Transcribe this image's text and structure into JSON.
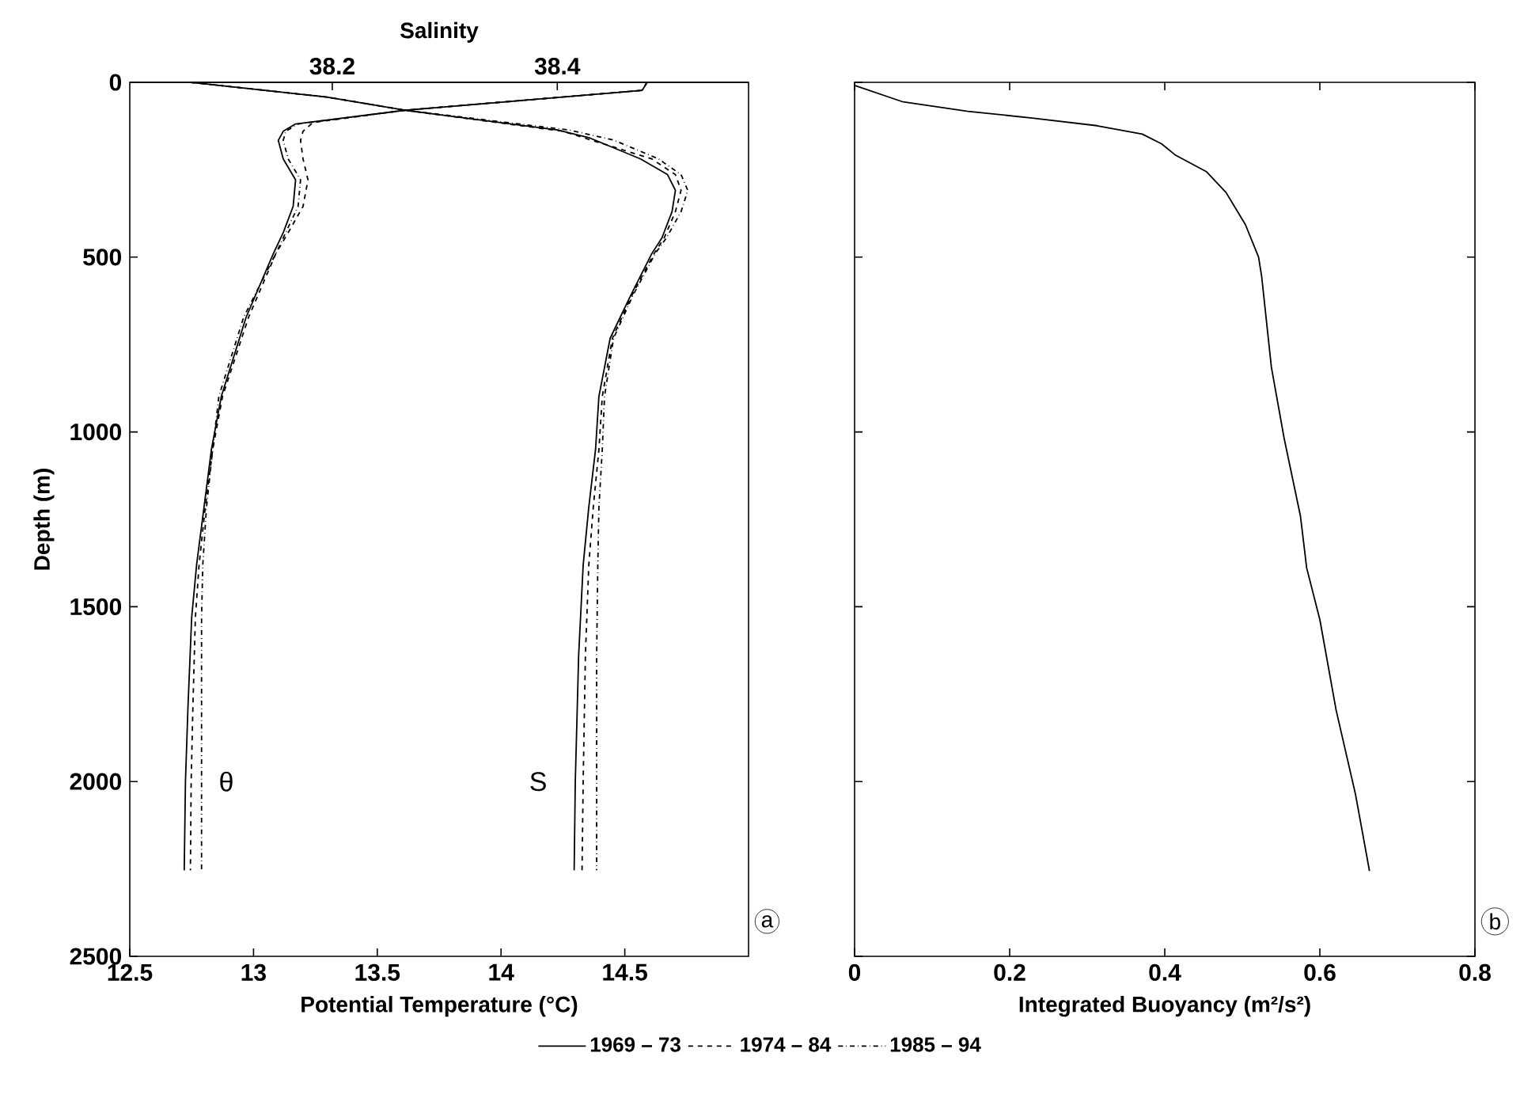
{
  "chart_data": [
    {
      "type": "line",
      "xlabel": "Potential Temperature (°C)",
      "ylabel": "Depth (m)",
      "x2label": "Salinity",
      "xlim": [
        12.5,
        15
      ],
      "xticks": [
        12.5,
        13,
        13.5,
        14,
        14.5
      ],
      "x2lim": [
        38.02,
        38.57
      ],
      "x2ticks": [
        38.2,
        38.4
      ],
      "ylim": [
        2500,
        0
      ],
      "yticks": [
        0,
        500,
        1000,
        1500,
        2000,
        2500
      ],
      "legend": "bottom",
      "series": [
        {
          "name": "1969 – 73",
          "color": "#000000",
          "line_style": "solid",
          "x": [
            14.59,
            14.57,
            13.61,
            13.17,
            13.12,
            13.1,
            13.12,
            13.17,
            13.16,
            13.12,
            13.08,
            12.97,
            12.87,
            12.83,
            12.8,
            12.77,
            12.75,
            12.735,
            12.725,
            12.72
          ],
          "values": [
            0,
            23,
            80,
            119,
            140,
            166,
            219,
            279,
            355,
            430,
            490,
            672,
            898,
            1050,
            1215,
            1380,
            1532,
            1789,
            2000,
            2254
          ]
        },
        {
          "name": "1974 – 84",
          "color": "#000000",
          "line_style": "dashed",
          "x": [
            14.59,
            14.57,
            13.61,
            13.24,
            13.2,
            13.19,
            13.2,
            13.22,
            13.2,
            13.14,
            13.09,
            12.98,
            12.875,
            12.835,
            12.805,
            12.78,
            12.765,
            12.755,
            12.748,
            12.745
          ],
          "values": [
            0,
            23,
            80,
            115,
            140,
            166,
            219,
            279,
            355,
            430,
            490,
            672,
            898,
            1050,
            1215,
            1380,
            1532,
            1789,
            2000,
            2254
          ]
        },
        {
          "name": "1985 – 94",
          "color": "#000000",
          "line_style": "dashdot",
          "x": [
            14.59,
            14.57,
            13.61,
            13.18,
            13.13,
            13.12,
            13.14,
            13.19,
            13.18,
            13.13,
            13.09,
            12.96,
            12.86,
            12.835,
            12.81,
            12.795,
            12.79,
            12.79
          ],
          "values": [
            0,
            23,
            80,
            119,
            140,
            166,
            219,
            279,
            355,
            430,
            490,
            672,
            898,
            1050,
            1215,
            1380,
            1532,
            2254
          ]
        },
        {
          "color": "#000000",
          "line_style": "solid",
          "axis": "x2",
          "x": [
            38.074,
            38.195,
            38.265,
            38.4,
            38.428,
            38.474,
            38.498,
            38.505,
            38.502,
            38.493,
            38.484,
            38.465,
            38.447,
            38.437,
            38.434,
            38.428,
            38.423,
            38.419,
            38.416,
            38.415
          ],
          "values": [
            0,
            42,
            80,
            136,
            158,
            219,
            264,
            309,
            370,
            445,
            490,
            611,
            732,
            898,
            1050,
            1215,
            1381,
            1638,
            2000,
            2254
          ]
        },
        {
          "color": "#000000",
          "line_style": "dashed",
          "axis": "x2",
          "x": [
            38.074,
            38.195,
            38.265,
            38.405,
            38.44,
            38.484,
            38.505,
            38.51,
            38.505,
            38.495,
            38.486,
            38.466,
            38.449,
            38.44,
            38.437,
            38.432,
            38.428,
            38.425,
            38.423,
            38.422
          ],
          "values": [
            0,
            42,
            80,
            140,
            175,
            219,
            264,
            309,
            370,
            445,
            490,
            611,
            732,
            898,
            1050,
            1215,
            1381,
            1638,
            2000,
            2254
          ]
        },
        {
          "color": "#000000",
          "line_style": "dashdot",
          "axis": "x2",
          "x": [
            38.074,
            38.195,
            38.265,
            38.41,
            38.45,
            38.49,
            38.51,
            38.516,
            38.51,
            38.497,
            38.487,
            38.467,
            38.45,
            38.442,
            38.44,
            38.437,
            38.436,
            38.435,
            38.435
          ],
          "values": [
            0,
            42,
            80,
            136,
            165,
            219,
            264,
            309,
            370,
            445,
            490,
            611,
            732,
            898,
            1050,
            1215,
            1381,
            1638,
            2254
          ]
        }
      ],
      "annotations": [
        "θ",
        "S",
        "a"
      ]
    },
    {
      "type": "line",
      "xlabel": "Integrated Buoyancy (m²/s²)",
      "xlim": [
        0,
        0.8
      ],
      "xticks": [
        0,
        0.2,
        0.4,
        0.6,
        0.8
      ],
      "ylim": [
        2500,
        0
      ],
      "yticks": [
        0,
        500,
        1000,
        1500,
        2000,
        2500
      ],
      "tick_labels": "x",
      "series": [
        {
          "color": "#000000",
          "line_style": "solid",
          "x": [
            0,
            0.0,
            0.0625,
            0.146,
            0.229,
            0.3125,
            0.371,
            0.396,
            0.413,
            0.454,
            0.479,
            0.504,
            0.521,
            0.525,
            0.5375,
            0.554,
            0.575,
            0.583,
            0.6,
            0.621,
            0.646,
            0.664
          ],
          "values": [
            0,
            9,
            56,
            83,
            102,
            124,
            148,
            176,
            207,
            256,
            315,
            407,
            500,
            556,
            815,
            1019,
            1241,
            1389,
            1537,
            1796,
            2037,
            2256
          ]
        }
      ],
      "annotations": [
        "b"
      ]
    }
  ]
}
